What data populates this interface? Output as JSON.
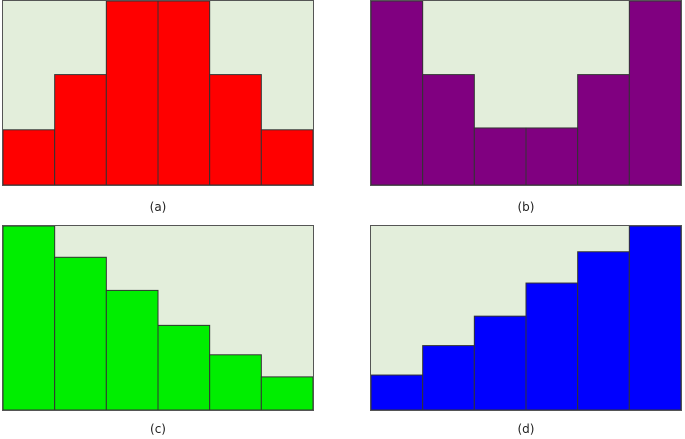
{
  "colors": {
    "background": "#e3eedb",
    "stroke": "#333333"
  },
  "chart_data": [
    {
      "type": "bar",
      "caption": "(a)",
      "color": "#ff0000",
      "categories": [
        "",
        "",
        "",
        "",
        "",
        ""
      ],
      "values": [
        30,
        60,
        100,
        100,
        60,
        30
      ],
      "ylim": [
        0,
        100
      ]
    },
    {
      "type": "bar",
      "caption": "(b)",
      "color": "#800080",
      "categories": [
        "",
        "",
        "",
        "",
        "",
        ""
      ],
      "values": [
        100,
        60,
        31,
        31,
        60,
        100
      ],
      "ylim": [
        0,
        100
      ]
    },
    {
      "type": "bar",
      "caption": "(c)",
      "color": "#00ee00",
      "categories": [
        "",
        "",
        "",
        "",
        "",
        ""
      ],
      "values": [
        100,
        83,
        65,
        46,
        30,
        18
      ],
      "ylim": [
        0,
        100
      ]
    },
    {
      "type": "bar",
      "caption": "(d)",
      "color": "#0000ff",
      "categories": [
        "",
        "",
        "",
        "",
        "",
        ""
      ],
      "values": [
        19,
        35,
        51,
        69,
        86,
        100
      ],
      "ylim": [
        0,
        100
      ]
    }
  ]
}
